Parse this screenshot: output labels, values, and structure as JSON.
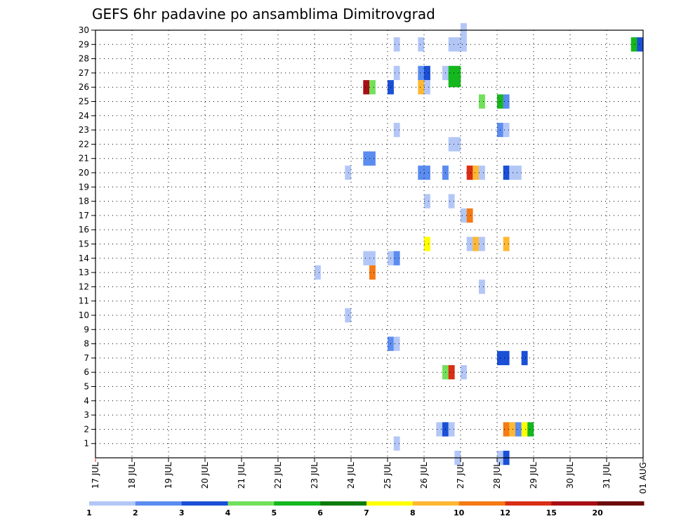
{
  "chart_data": {
    "type": "heatmap",
    "title": "GEFS 6hr padavine po ansamblima Dimitrovgrad",
    "xlabel": "",
    "ylabel": "",
    "x_ticks": [
      "17 JUL",
      "18 JUL",
      "19 JUL",
      "20 JUL",
      "21 JUL",
      "22 JUL",
      "23 JUL",
      "24 JUL",
      "25 JUL",
      "26 JUL",
      "27 JUL",
      "28 JUL",
      "29 JUL",
      "30 JUL",
      "31 JUL",
      "01 AUG"
    ],
    "xlim": [
      0,
      90
    ],
    "ylim": [
      0,
      30
    ],
    "y_ticks": [
      1,
      2,
      3,
      4,
      5,
      6,
      7,
      8,
      9,
      10,
      11,
      12,
      13,
      14,
      15,
      16,
      17,
      18,
      19,
      20,
      21,
      22,
      23,
      24,
      25,
      26,
      27,
      28,
      29,
      30
    ],
    "grid": true,
    "legend_position": "bottom",
    "colorbar": {
      "labels": [
        "1",
        "2",
        "3",
        "4",
        "5",
        "6",
        "7",
        "8",
        "10",
        "12",
        "15",
        "20"
      ],
      "colors": [
        "#b3c7f7",
        "#5b8cf0",
        "#1a4fd6",
        "#72e05a",
        "#14b81e",
        "#0a7a0a",
        "#ffff00",
        "#ffb833",
        "#f57a14",
        "#d92e14",
        "#a80f14",
        "#6b0a0a"
      ]
    },
    "cells": [
      {
        "x": 60,
        "y": 29,
        "c": 0
      },
      {
        "x": 60,
        "y": 30,
        "c": 0
      },
      {
        "x": 59,
        "y": 29,
        "c": 0
      },
      {
        "x": 58,
        "y": 29,
        "c": 0
      },
      {
        "x": 53,
        "y": 29,
        "c": 0
      },
      {
        "x": 49,
        "y": 29,
        "c": 0
      },
      {
        "x": 88,
        "y": 29,
        "c": 4
      },
      {
        "x": 89,
        "y": 29,
        "c": 2
      },
      {
        "x": 49,
        "y": 27,
        "c": 0
      },
      {
        "x": 53,
        "y": 27,
        "c": 1
      },
      {
        "x": 54,
        "y": 27,
        "c": 2
      },
      {
        "x": 57,
        "y": 27,
        "c": 0
      },
      {
        "x": 58,
        "y": 27,
        "c": 4
      },
      {
        "x": 59,
        "y": 27,
        "c": 4
      },
      {
        "x": 58,
        "y": 26.5,
        "c": 4
      },
      {
        "x": 59,
        "y": 26.5,
        "c": 4
      },
      {
        "x": 44,
        "y": 26,
        "c": 10
      },
      {
        "x": 45,
        "y": 26,
        "c": 3
      },
      {
        "x": 48,
        "y": 26,
        "c": 2
      },
      {
        "x": 53,
        "y": 26,
        "c": 7
      },
      {
        "x": 54,
        "y": 26,
        "c": 0
      },
      {
        "x": 63,
        "y": 25,
        "c": 3
      },
      {
        "x": 66,
        "y": 25,
        "c": 4
      },
      {
        "x": 67,
        "y": 25,
        "c": 1
      },
      {
        "x": 66,
        "y": 23,
        "c": 1
      },
      {
        "x": 67,
        "y": 23,
        "c": 0
      },
      {
        "x": 49,
        "y": 23,
        "c": 0
      },
      {
        "x": 58,
        "y": 22,
        "c": 0
      },
      {
        "x": 59,
        "y": 22,
        "c": 0
      },
      {
        "x": 44,
        "y": 21,
        "c": 1
      },
      {
        "x": 45,
        "y": 21,
        "c": 1
      },
      {
        "x": 41,
        "y": 20,
        "c": 0
      },
      {
        "x": 53,
        "y": 20,
        "c": 1
      },
      {
        "x": 54,
        "y": 20,
        "c": 1
      },
      {
        "x": 57,
        "y": 20,
        "c": 1
      },
      {
        "x": 61,
        "y": 20,
        "c": 9
      },
      {
        "x": 62,
        "y": 20,
        "c": 7
      },
      {
        "x": 63,
        "y": 20,
        "c": 0
      },
      {
        "x": 67,
        "y": 20,
        "c": 2
      },
      {
        "x": 68,
        "y": 20,
        "c": 0
      },
      {
        "x": 69,
        "y": 20,
        "c": 0
      },
      {
        "x": 54,
        "y": 18,
        "c": 0
      },
      {
        "x": 58,
        "y": 18,
        "c": 0
      },
      {
        "x": 60,
        "y": 17,
        "c": 0
      },
      {
        "x": 61,
        "y": 17,
        "c": 8
      },
      {
        "x": 54,
        "y": 15,
        "c": 6
      },
      {
        "x": 61,
        "y": 15,
        "c": 0
      },
      {
        "x": 62,
        "y": 15,
        "c": 7
      },
      {
        "x": 63,
        "y": 15,
        "c": 0
      },
      {
        "x": 67,
        "y": 15,
        "c": 7
      },
      {
        "x": 44,
        "y": 14,
        "c": 0
      },
      {
        "x": 45,
        "y": 14,
        "c": 0
      },
      {
        "x": 48,
        "y": 14,
        "c": 0
      },
      {
        "x": 49,
        "y": 14,
        "c": 1
      },
      {
        "x": 45,
        "y": 13,
        "c": 8
      },
      {
        "x": 36,
        "y": 13,
        "c": 0
      },
      {
        "x": 63,
        "y": 12,
        "c": 0
      },
      {
        "x": 41,
        "y": 10,
        "c": 0
      },
      {
        "x": 48,
        "y": 8,
        "c": 1
      },
      {
        "x": 49,
        "y": 8,
        "c": 0
      },
      {
        "x": 66,
        "y": 7,
        "c": 2
      },
      {
        "x": 67,
        "y": 7,
        "c": 2
      },
      {
        "x": 70,
        "y": 7,
        "c": 2
      },
      {
        "x": 57,
        "y": 6,
        "c": 3
      },
      {
        "x": 58,
        "y": 6,
        "c": 9
      },
      {
        "x": 60,
        "y": 6,
        "c": 0
      },
      {
        "x": 56,
        "y": 2,
        "c": 0
      },
      {
        "x": 57,
        "y": 2,
        "c": 2
      },
      {
        "x": 58,
        "y": 2,
        "c": 0
      },
      {
        "x": 67,
        "y": 2,
        "c": 8
      },
      {
        "x": 68,
        "y": 2,
        "c": 7
      },
      {
        "x": 69,
        "y": 2,
        "c": 1
      },
      {
        "x": 70,
        "y": 2,
        "c": 6
      },
      {
        "x": 71,
        "y": 2,
        "c": 4
      },
      {
        "x": 49,
        "y": 1,
        "c": 0
      },
      {
        "x": 59,
        "y": 0,
        "c": 0
      },
      {
        "x": 66,
        "y": 0,
        "c": 0
      },
      {
        "x": 67,
        "y": 0,
        "c": 2
      }
    ]
  }
}
